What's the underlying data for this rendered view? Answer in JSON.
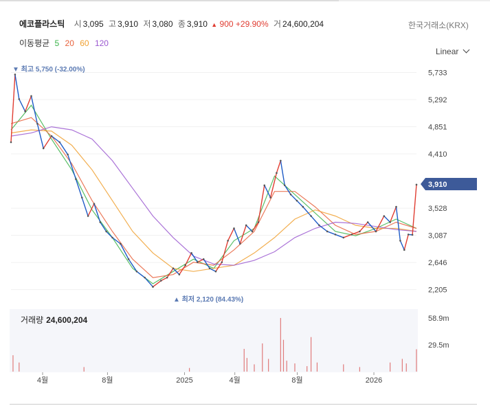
{
  "stock": {
    "name": "에코플라스틱",
    "open_label": "시",
    "open": "3,095",
    "high_label": "고",
    "high": "3,910",
    "low_label": "저",
    "low": "3,080",
    "close_label": "종",
    "close": "3,910",
    "change_arrow": "▲",
    "change": "900",
    "change_pct": "+29.90%",
    "volume_label": "거",
    "volume": "24,600,204"
  },
  "exchange": "한국거래소(KRX)",
  "moving_averages": {
    "label": "이동평균",
    "periods": [
      {
        "label": "5",
        "color": "#3cb44b"
      },
      {
        "label": "20",
        "color": "#e8623c"
      },
      {
        "label": "60",
        "color": "#f0a030"
      },
      {
        "label": "120",
        "color": "#9b59d0"
      }
    ]
  },
  "scale_selector": "Linear",
  "annotations": {
    "high_text": "▼ 최고 5,750 (-32.00%)",
    "low_text": "▲ 최저 2,120 (84.43%)"
  },
  "current_price_tag": "3,910",
  "volume_panel": {
    "label": "거래량",
    "value": "24,600,204",
    "ticks": [
      "58.9m",
      "29.5m"
    ]
  },
  "colors": {
    "up": "#e03c31",
    "down": "#1e5bc6",
    "tag": "#3d5a99",
    "ma5": "#3cb44b",
    "ma20": "#e8623c",
    "ma60": "#f0a030",
    "ma120": "#9b59d0"
  },
  "chart_data": {
    "type": "line",
    "title": "",
    "yscale": "linear",
    "ylim": [
      2000,
      5850
    ],
    "y_ticks": [
      5733,
      5292,
      4851,
      4410,
      3528,
      3087,
      2646,
      2205
    ],
    "y_tick_labels": [
      "5,733",
      "5,292",
      "4,851",
      "4,410",
      "3,528",
      "3,087",
      "2,646",
      "2,205"
    ],
    "x_tick_labels": [
      "4월",
      "8월",
      "2025",
      "4월",
      "8월",
      "2026"
    ],
    "x_tick_positions": [
      0.078,
      0.238,
      0.428,
      0.552,
      0.706,
      0.895
    ],
    "series": [
      {
        "role": "price",
        "x": [
          0,
          0.01,
          0.02,
          0.035,
          0.05,
          0.065,
          0.08,
          0.1,
          0.12,
          0.14,
          0.16,
          0.175,
          0.19,
          0.205,
          0.22,
          0.235,
          0.25,
          0.27,
          0.29,
          0.31,
          0.33,
          0.35,
          0.37,
          0.385,
          0.4,
          0.415,
          0.43,
          0.445,
          0.46,
          0.475,
          0.49,
          0.505,
          0.52,
          0.535,
          0.55,
          0.565,
          0.58,
          0.595,
          0.61,
          0.625,
          0.64,
          0.655,
          0.665,
          0.675,
          0.69,
          0.705,
          0.72,
          0.74,
          0.76,
          0.78,
          0.8,
          0.82,
          0.84,
          0.86,
          0.88,
          0.9,
          0.92,
          0.935,
          0.95,
          0.96,
          0.97,
          0.98,
          0.99,
          1.0
        ],
        "y": [
          4600,
          5700,
          5300,
          5100,
          5350,
          4900,
          4500,
          4700,
          4600,
          4400,
          4000,
          3700,
          3400,
          3600,
          3300,
          3150,
          3050,
          2950,
          2700,
          2500,
          2400,
          2250,
          2350,
          2400,
          2550,
          2450,
          2600,
          2800,
          2650,
          2700,
          2550,
          2500,
          2650,
          3000,
          3200,
          2950,
          3250,
          3150,
          3300,
          3900,
          3700,
          4100,
          4300,
          3900,
          3750,
          3650,
          3550,
          3400,
          3250,
          3150,
          3100,
          3050,
          3100,
          3150,
          3300,
          3150,
          3400,
          3300,
          3550,
          3000,
          2850,
          3100,
          3095,
          3910
        ]
      },
      {
        "name": "5",
        "x": [
          0,
          0.05,
          0.1,
          0.15,
          0.2,
          0.25,
          0.3,
          0.35,
          0.4,
          0.45,
          0.5,
          0.55,
          0.6,
          0.65,
          0.7,
          0.75,
          0.8,
          0.85,
          0.9,
          0.95,
          1.0
        ],
        "y": [
          4800,
          5200,
          4650,
          4150,
          3500,
          3050,
          2550,
          2300,
          2500,
          2700,
          2550,
          3000,
          3200,
          4050,
          3750,
          3450,
          3150,
          3080,
          3200,
          3350,
          3200
        ]
      },
      {
        "name": "20",
        "x": [
          0,
          0.05,
          0.1,
          0.15,
          0.2,
          0.25,
          0.3,
          0.35,
          0.4,
          0.45,
          0.5,
          0.55,
          0.6,
          0.65,
          0.7,
          0.75,
          0.8,
          0.85,
          0.9,
          0.95,
          1.0
        ],
        "y": [
          4900,
          5000,
          4700,
          4250,
          3650,
          3150,
          2700,
          2400,
          2450,
          2650,
          2600,
          2850,
          3150,
          3800,
          3800,
          3550,
          3250,
          3100,
          3150,
          3300,
          3200
        ]
      },
      {
        "name": "60",
        "x": [
          0,
          0.05,
          0.1,
          0.15,
          0.2,
          0.25,
          0.3,
          0.35,
          0.4,
          0.45,
          0.5,
          0.55,
          0.6,
          0.65,
          0.7,
          0.75,
          0.8,
          0.85,
          0.9,
          0.95,
          1.0
        ],
        "y": [
          4750,
          4800,
          4780,
          4550,
          4150,
          3650,
          3150,
          2800,
          2550,
          2500,
          2550,
          2600,
          2800,
          3050,
          3350,
          3500,
          3400,
          3250,
          3200,
          3200,
          3150
        ]
      },
      {
        "name": "120",
        "x": [
          0,
          0.05,
          0.1,
          0.15,
          0.2,
          0.25,
          0.3,
          0.35,
          0.4,
          0.45,
          0.5,
          0.55,
          0.6,
          0.65,
          0.7,
          0.75,
          0.8,
          0.85,
          0.9,
          0.95,
          1.0
        ],
        "y": [
          4700,
          4750,
          4850,
          4800,
          4650,
          4300,
          3850,
          3400,
          3050,
          2750,
          2620,
          2600,
          2680,
          2820,
          3050,
          3200,
          3300,
          3280,
          3230,
          3180,
          3150
        ]
      }
    ],
    "volume": {
      "ylim": [
        0,
        65
      ],
      "unit": "m",
      "spikes": [
        {
          "x": 0.005,
          "v": 18
        },
        {
          "x": 0.02,
          "v": 10
        },
        {
          "x": 0.18,
          "v": 5
        },
        {
          "x": 0.44,
          "v": 4
        },
        {
          "x": 0.575,
          "v": 25
        },
        {
          "x": 0.582,
          "v": 15
        },
        {
          "x": 0.6,
          "v": 8
        },
        {
          "x": 0.62,
          "v": 31
        },
        {
          "x": 0.635,
          "v": 14
        },
        {
          "x": 0.665,
          "v": 59
        },
        {
          "x": 0.672,
          "v": 35
        },
        {
          "x": 0.68,
          "v": 12
        },
        {
          "x": 0.7,
          "v": 9
        },
        {
          "x": 0.73,
          "v": 6
        },
        {
          "x": 0.74,
          "v": 38
        },
        {
          "x": 0.755,
          "v": 10
        },
        {
          "x": 0.82,
          "v": 8
        },
        {
          "x": 0.86,
          "v": 5
        },
        {
          "x": 0.935,
          "v": 10
        },
        {
          "x": 0.965,
          "v": 14
        },
        {
          "x": 0.975,
          "v": 9
        },
        {
          "x": 1.0,
          "v": 24.6
        }
      ]
    }
  }
}
